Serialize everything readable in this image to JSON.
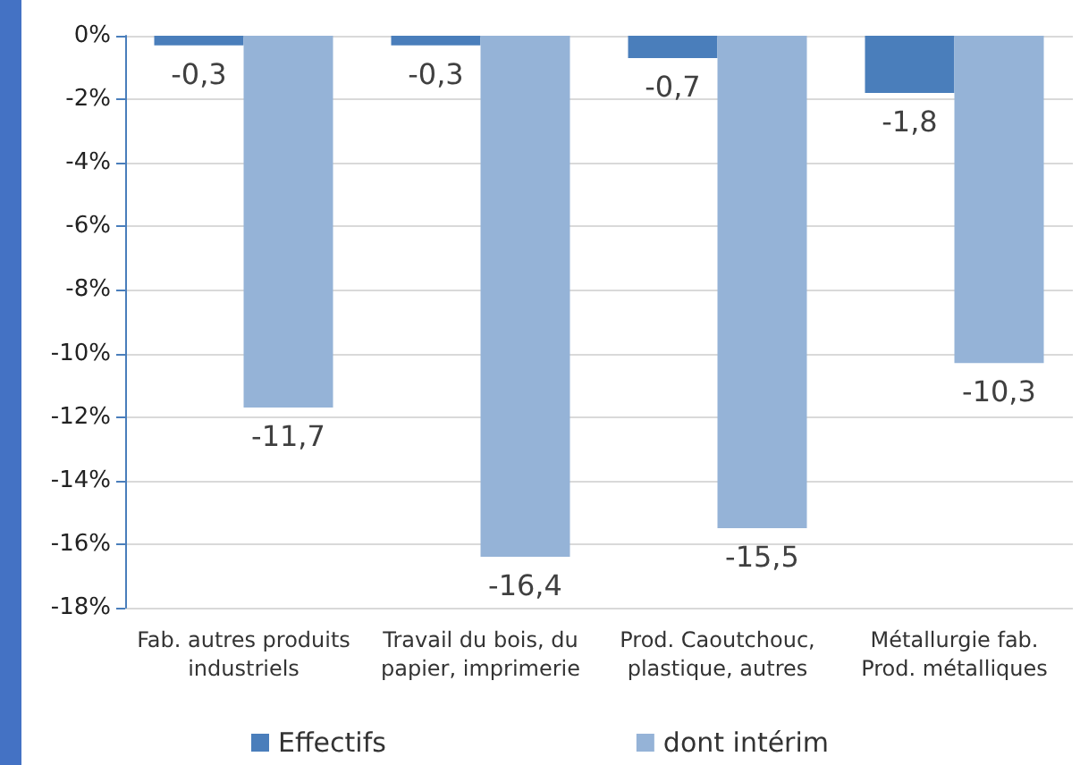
{
  "chart_data": {
    "type": "bar",
    "categories": [
      "Fab. autres produits\nindustriels",
      "Travail du bois, du\npapier, imprimerie",
      "Prod. Caoutchouc,\nplastique, autres",
      "Métallurgie fab.\nProd. métalliques"
    ],
    "series": [
      {
        "name": "Effectifs",
        "color": "#4a7ebb",
        "values": [
          -0.3,
          -0.3,
          -0.7,
          -1.8
        ],
        "value_labels": [
          "-0,3",
          "-0,3",
          "-0,7",
          "-1,8"
        ]
      },
      {
        "name": "dont intérim",
        "color": "#95b3d7",
        "values": [
          -11.7,
          -16.4,
          -15.5,
          -10.3
        ],
        "value_labels": [
          "-11,7",
          "-16,4",
          "-15,5",
          "-10,3"
        ]
      }
    ],
    "ylim": [
      -18,
      0
    ],
    "yticks": [
      {
        "value": 0,
        "label": "0%"
      },
      {
        "value": -2,
        "label": "-2%"
      },
      {
        "value": -4,
        "label": "-4%"
      },
      {
        "value": -6,
        "label": "-6%"
      },
      {
        "value": -8,
        "label": "-8%"
      },
      {
        "value": -10,
        "label": "-10%"
      },
      {
        "value": -12,
        "label": "-12%"
      },
      {
        "value": -14,
        "label": "-14%"
      },
      {
        "value": -16,
        "label": "-16%"
      },
      {
        "value": -18,
        "label": "-18%"
      }
    ],
    "grid": "y",
    "legend": "bottom"
  }
}
